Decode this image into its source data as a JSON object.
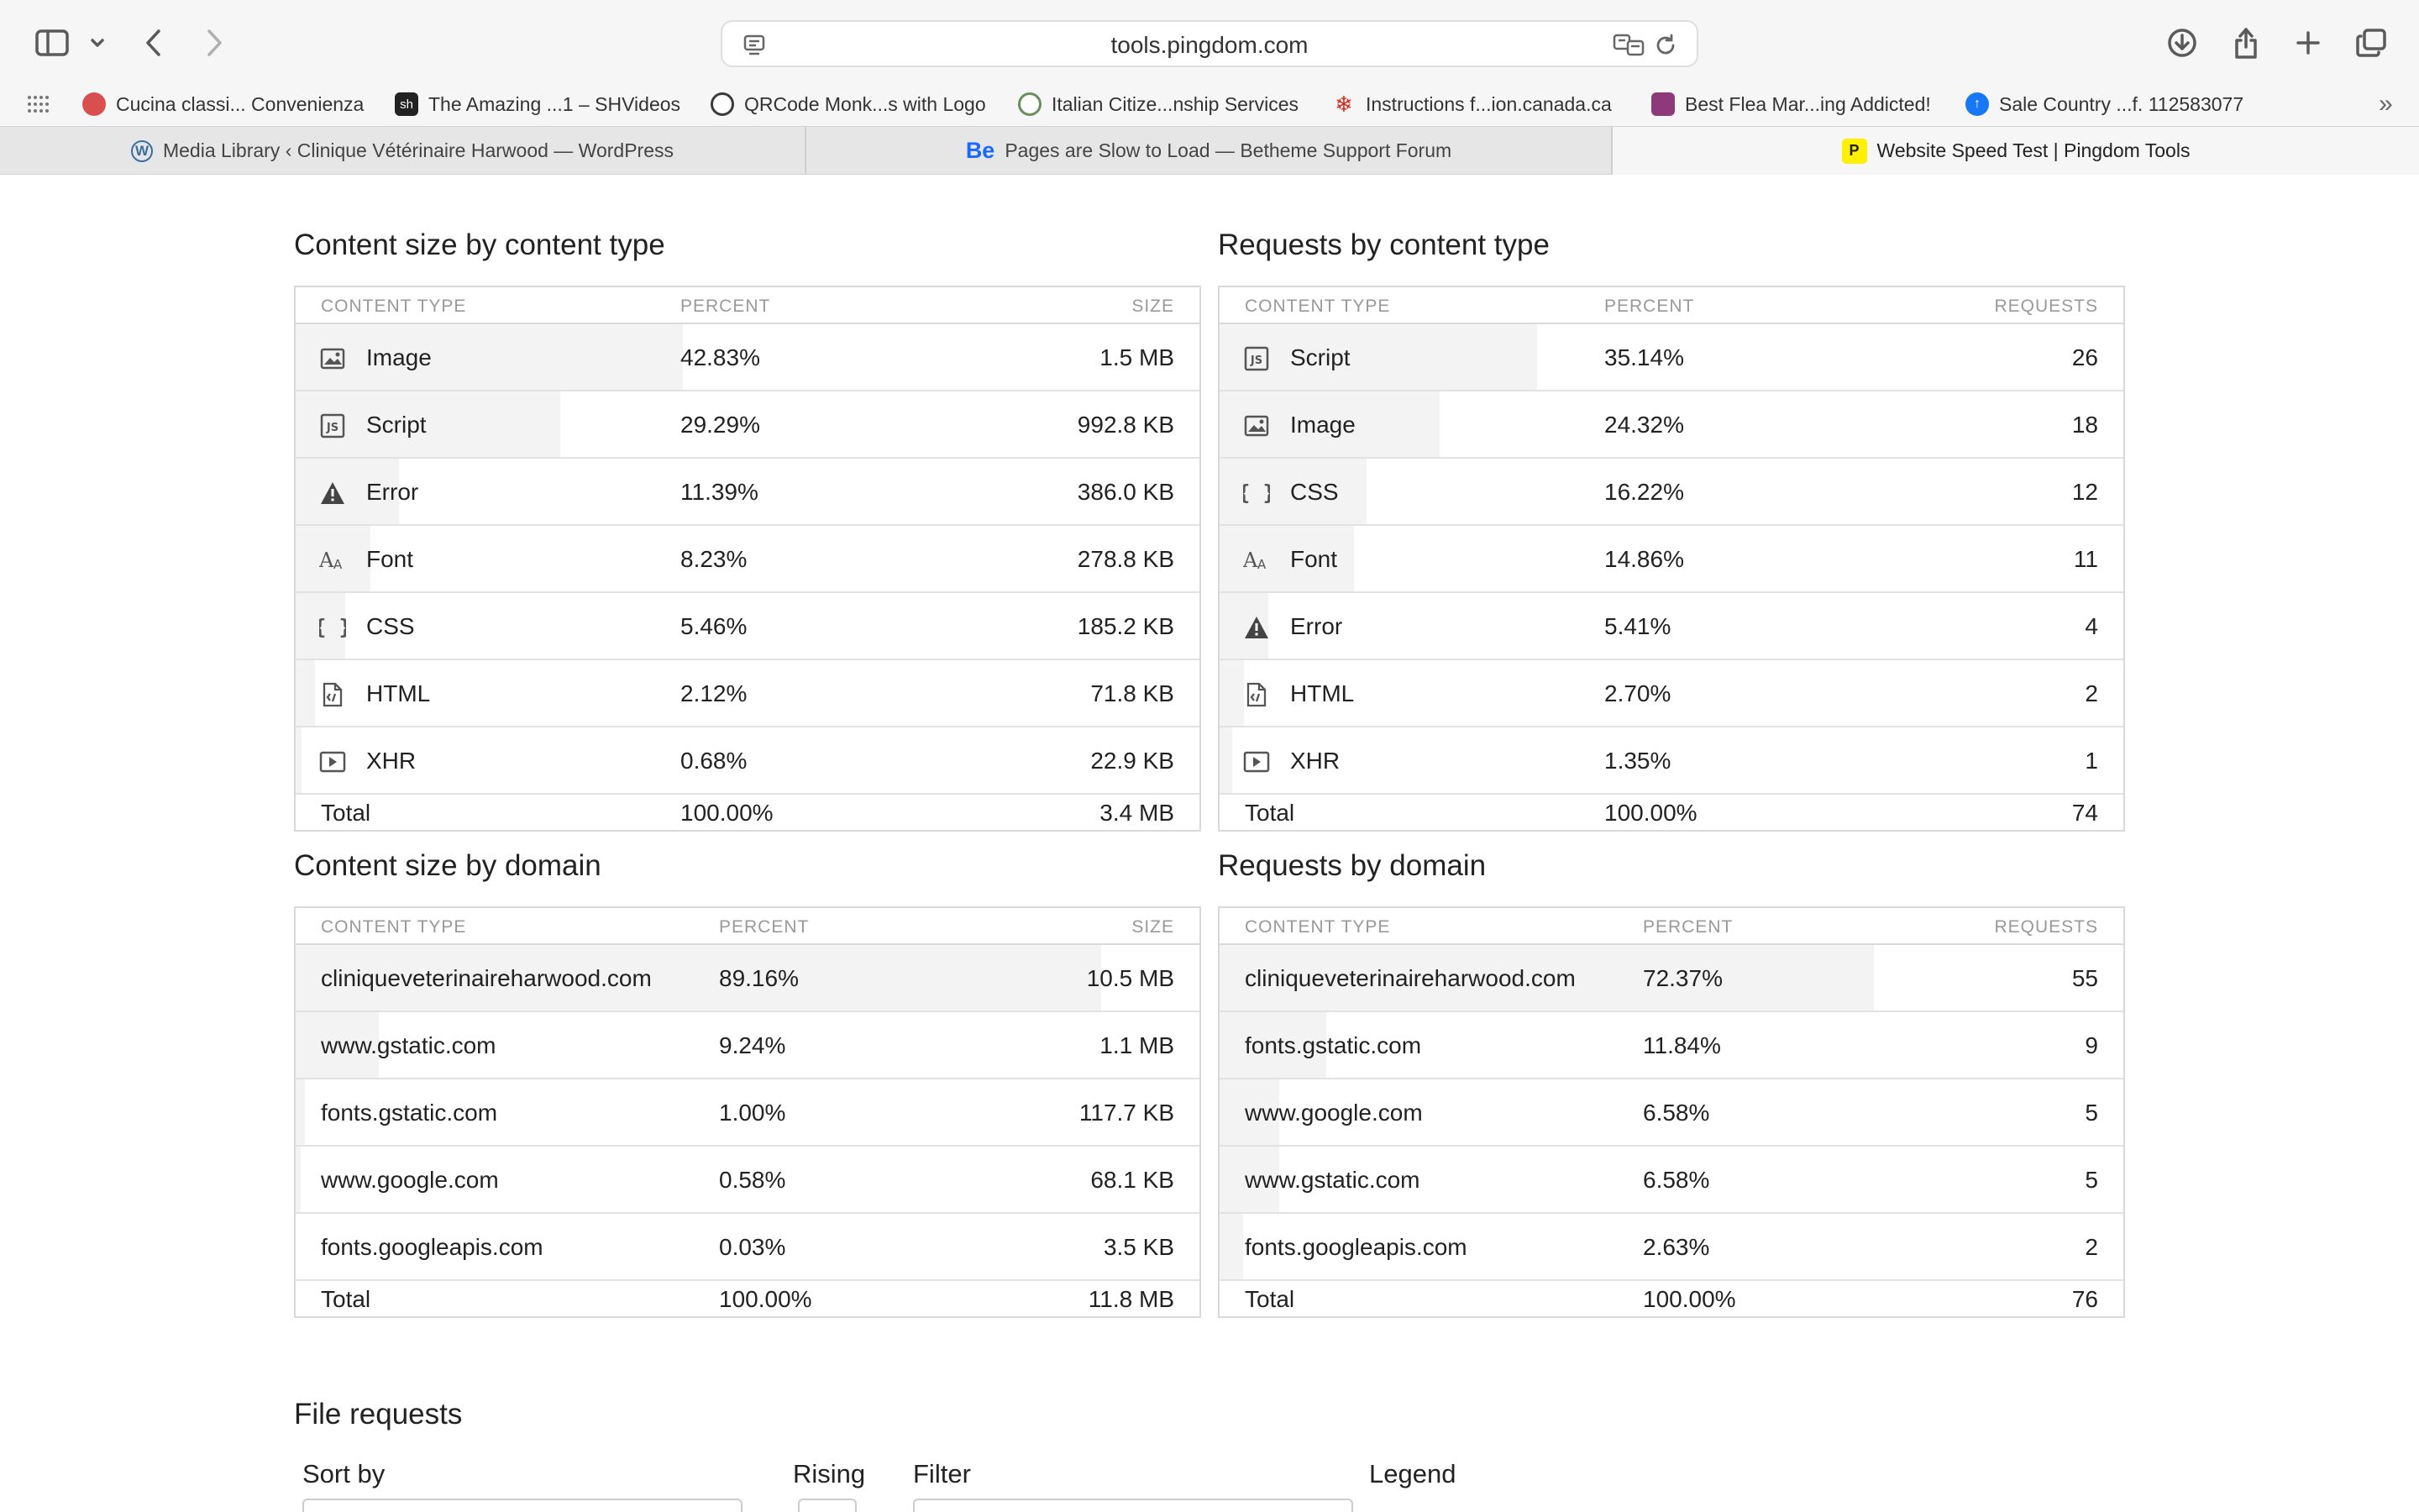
{
  "browser": {
    "url": "tools.pingdom.com",
    "bookmarks": [
      {
        "label": "Cucina classi... Convenienza",
        "color": "#d94f4f"
      },
      {
        "label": "The Amazing ...1 – SHVideos",
        "color": "#222222",
        "fav_text": "sh"
      },
      {
        "label": "QRCode Monk...s with Logo",
        "color": "#3a3a3a"
      },
      {
        "label": "Italian Citize...nship Services",
        "color": "#6a8f5a"
      },
      {
        "label": "Instructions f...ion.canada.ca",
        "color": "#d52b1e"
      },
      {
        "label": "Best Flea Mar...ing Addicted!",
        "color": "#8e3a7a"
      },
      {
        "label": "Sale Country ...f. 112583077",
        "color": "#1877f2"
      }
    ],
    "tabs": [
      {
        "label": "Media Library ‹ Clinique Vétérinaire Harwood — WordPress",
        "fav_color": "#3a6ea5"
      },
      {
        "label": "Pages are Slow to Load — Betheme Support Forum",
        "fav_text": "Be",
        "fav_color": "#1769ff"
      },
      {
        "label": "Website Speed Test | Pingdom Tools",
        "fav_text": "P",
        "fav_color": "#fff000"
      }
    ]
  },
  "content_size_by_type": {
    "title": "Content size by content type",
    "headers": {
      "type": "CONTENT TYPE",
      "percent": "PERCENT",
      "value": "SIZE"
    },
    "rows": [
      {
        "icon": "image-icon",
        "label": "Image",
        "percent": "42.83%",
        "fraction": 0.4283,
        "value": "1.5 MB"
      },
      {
        "icon": "script-icon",
        "label": "Script",
        "percent": "29.29%",
        "fraction": 0.2929,
        "value": "992.8 KB"
      },
      {
        "icon": "error-icon",
        "label": "Error",
        "percent": "11.39%",
        "fraction": 0.1139,
        "value": "386.0 KB"
      },
      {
        "icon": "font-icon",
        "label": "Font",
        "percent": "8.23%",
        "fraction": 0.0823,
        "value": "278.8 KB"
      },
      {
        "icon": "css-icon",
        "label": "CSS",
        "percent": "5.46%",
        "fraction": 0.0546,
        "value": "185.2 KB"
      },
      {
        "icon": "html-icon",
        "label": "HTML",
        "percent": "2.12%",
        "fraction": 0.0212,
        "value": "71.8 KB"
      },
      {
        "icon": "xhr-icon",
        "label": "XHR",
        "percent": "0.68%",
        "fraction": 0.0068,
        "value": "22.9 KB"
      }
    ],
    "total": {
      "label": "Total",
      "percent": "100.00%",
      "value": "3.4 MB"
    }
  },
  "requests_by_type": {
    "title": "Requests by content type",
    "headers": {
      "type": "CONTENT TYPE",
      "percent": "PERCENT",
      "value": "REQUESTS"
    },
    "rows": [
      {
        "icon": "script-icon",
        "label": "Script",
        "percent": "35.14%",
        "fraction": 0.3514,
        "value": "26"
      },
      {
        "icon": "image-icon",
        "label": "Image",
        "percent": "24.32%",
        "fraction": 0.2432,
        "value": "18"
      },
      {
        "icon": "css-icon",
        "label": "CSS",
        "percent": "16.22%",
        "fraction": 0.1622,
        "value": "12"
      },
      {
        "icon": "font-icon",
        "label": "Font",
        "percent": "14.86%",
        "fraction": 0.1486,
        "value": "11"
      },
      {
        "icon": "error-icon",
        "label": "Error",
        "percent": "5.41%",
        "fraction": 0.0541,
        "value": "4"
      },
      {
        "icon": "html-icon",
        "label": "HTML",
        "percent": "2.70%",
        "fraction": 0.027,
        "value": "2"
      },
      {
        "icon": "xhr-icon",
        "label": "XHR",
        "percent": "1.35%",
        "fraction": 0.0135,
        "value": "1"
      }
    ],
    "total": {
      "label": "Total",
      "percent": "100.00%",
      "value": "74"
    }
  },
  "content_size_by_domain": {
    "title": "Content size by domain",
    "headers": {
      "type": "CONTENT TYPE",
      "percent": "PERCENT",
      "value": "SIZE"
    },
    "rows": [
      {
        "label": "cliniqueveterinaireharwood.com",
        "percent": "89.16%",
        "fraction": 0.8916,
        "value": "10.5 MB"
      },
      {
        "label": "www.gstatic.com",
        "percent": "9.24%",
        "fraction": 0.0924,
        "value": "1.1 MB"
      },
      {
        "label": "fonts.gstatic.com",
        "percent": "1.00%",
        "fraction": 0.01,
        "value": "117.7 KB"
      },
      {
        "label": "www.google.com",
        "percent": "0.58%",
        "fraction": 0.0058,
        "value": "68.1 KB"
      },
      {
        "label": "fonts.googleapis.com",
        "percent": "0.03%",
        "fraction": 0.0003,
        "value": "3.5 KB"
      }
    ],
    "total": {
      "label": "Total",
      "percent": "100.00%",
      "value": "11.8 MB"
    }
  },
  "requests_by_domain": {
    "title": "Requests by domain",
    "headers": {
      "type": "CONTENT TYPE",
      "percent": "PERCENT",
      "value": "REQUESTS"
    },
    "rows": [
      {
        "label": "cliniqueveterinaireharwood.com",
        "percent": "72.37%",
        "fraction": 0.7237,
        "value": "55"
      },
      {
        "label": "fonts.gstatic.com",
        "percent": "11.84%",
        "fraction": 0.1184,
        "value": "9"
      },
      {
        "label": "www.google.com",
        "percent": "6.58%",
        "fraction": 0.0658,
        "value": "5"
      },
      {
        "label": "www.gstatic.com",
        "percent": "6.58%",
        "fraction": 0.0658,
        "value": "5"
      },
      {
        "label": "fonts.googleapis.com",
        "percent": "2.63%",
        "fraction": 0.0263,
        "value": "2"
      }
    ],
    "total": {
      "label": "Total",
      "percent": "100.00%",
      "value": "76"
    }
  },
  "file_requests": {
    "title": "File requests",
    "sort_by_label": "Sort by",
    "rising_label": "Rising",
    "filter_label": "Filter",
    "legend_label": "Legend"
  }
}
